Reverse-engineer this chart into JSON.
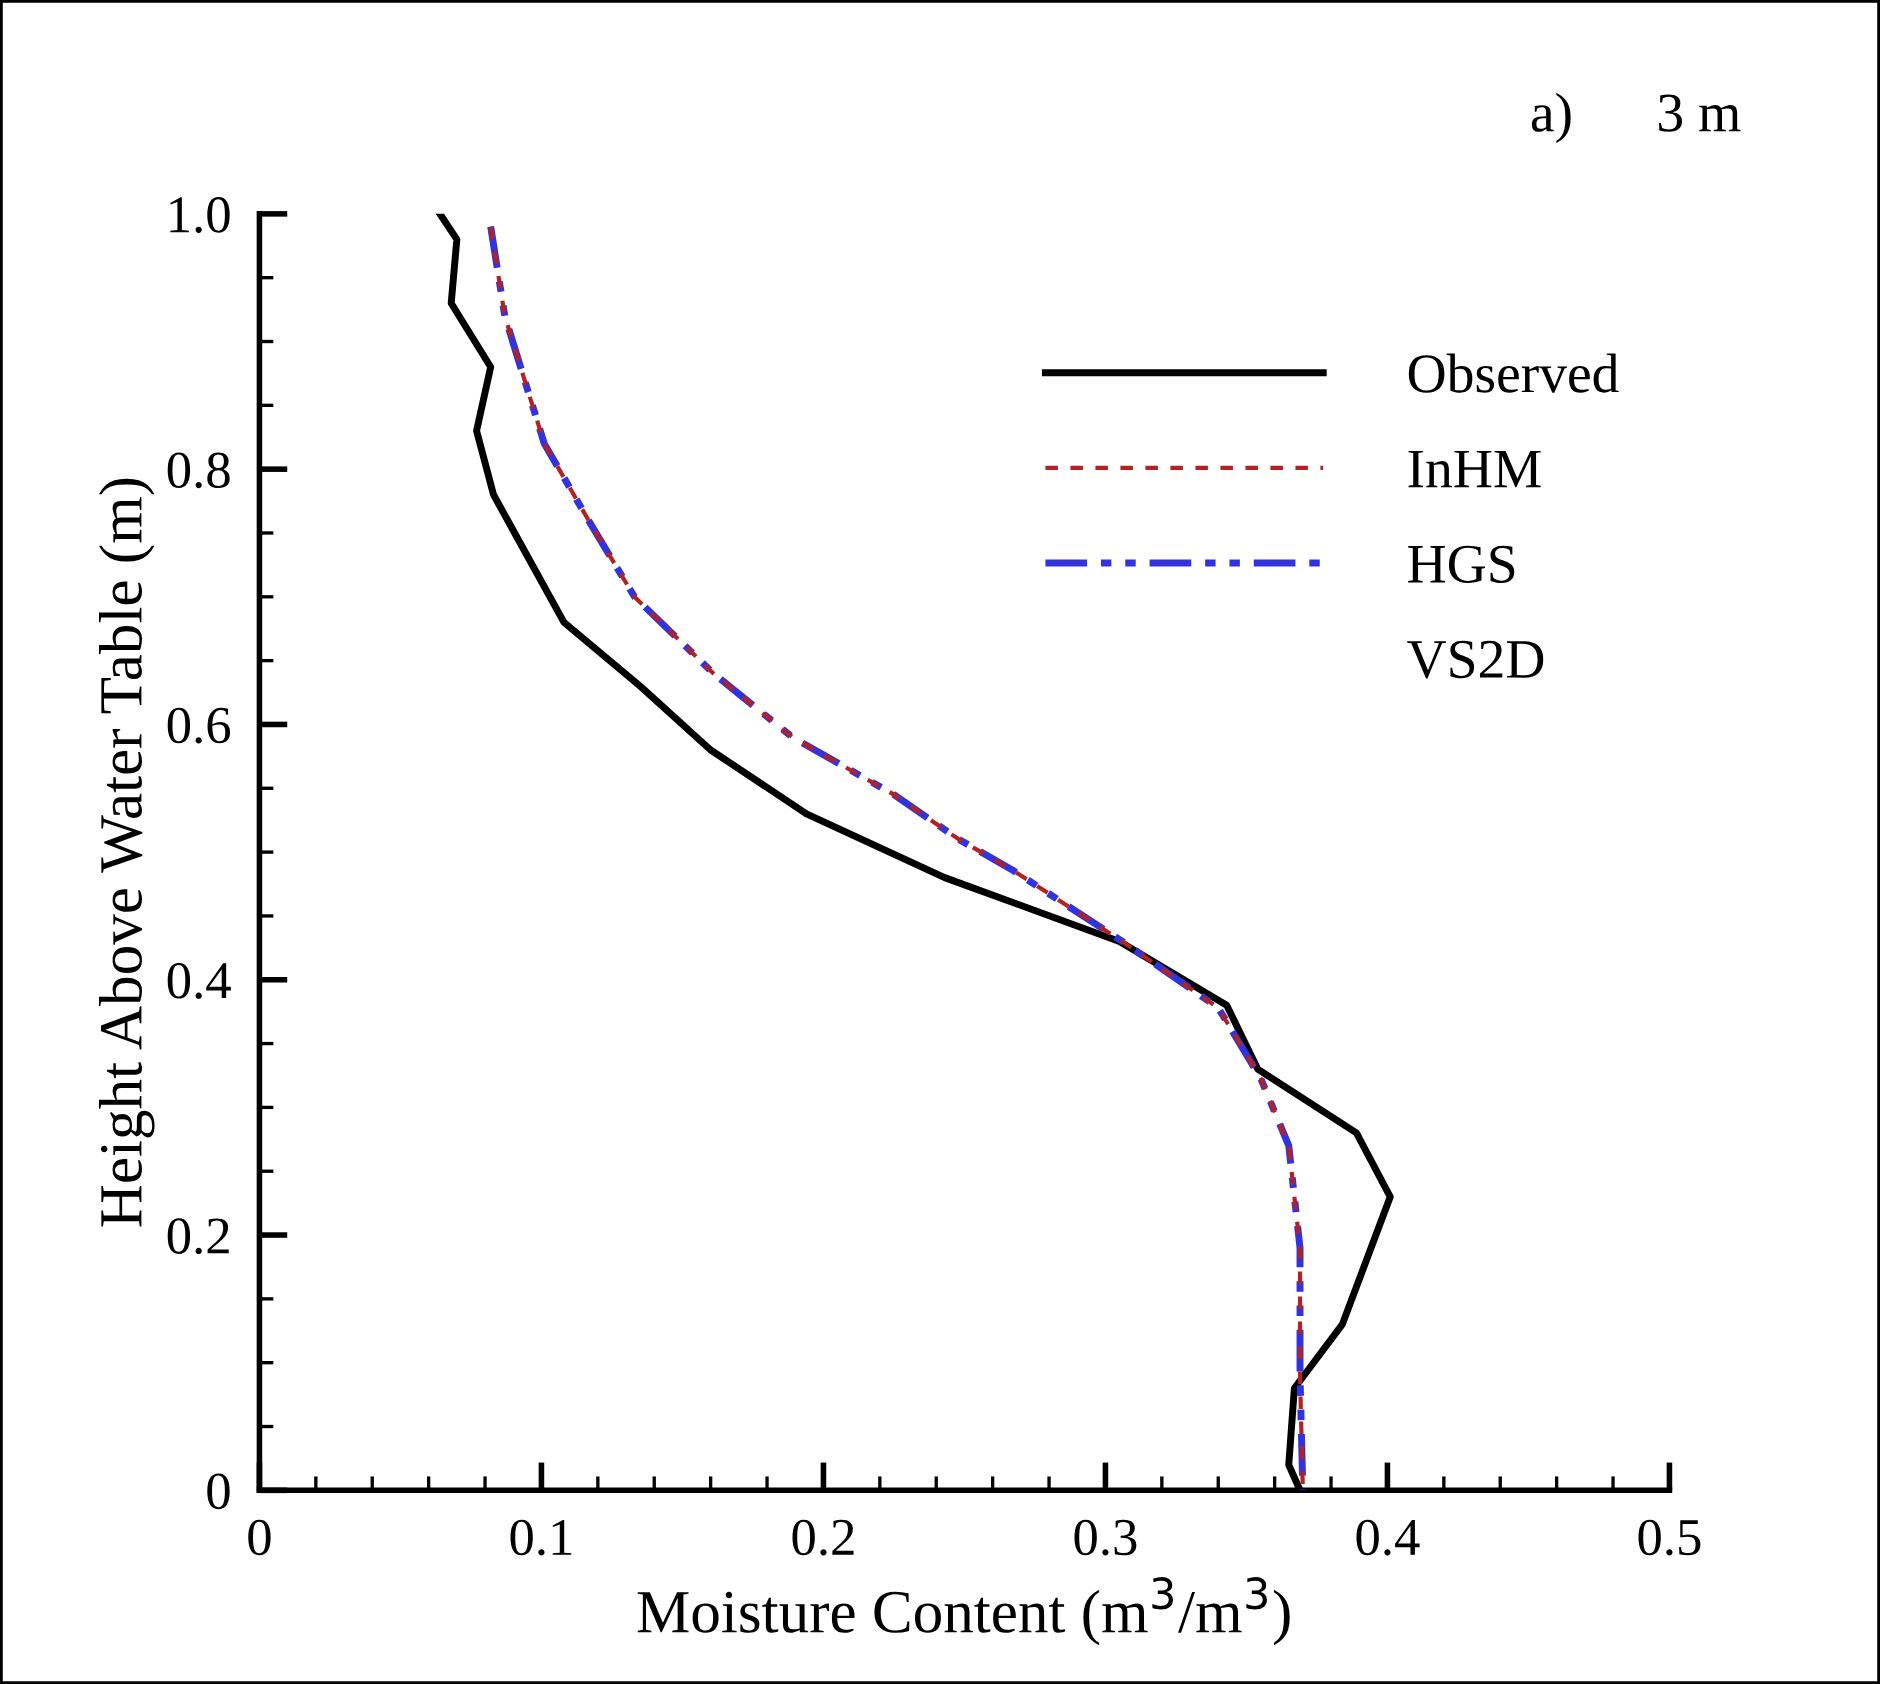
{
  "chart_data": {
    "type": "line",
    "xlabel": "Moisture Content (m$^{3}$/m$^{3}$)",
    "ylabel": "Height Above Water Table (m)",
    "annotations": [
      "a)      3 m"
    ],
    "xlim": [
      0,
      0.5
    ],
    "ylim": [
      0,
      1.0
    ],
    "xticks": [
      0,
      0.1,
      0.2,
      0.3,
      0.4,
      0.5
    ],
    "yticks": [
      0,
      0.2,
      0.4,
      0.6,
      0.8,
      {
        "value": 1.0,
        "label": "1.0"
      }
    ],
    "grid": false,
    "legend": "top right",
    "marker": "none",
    "series": [
      {
        "name": "Observed",
        "color": "#000000",
        "line_style": "solid",
        "x": [
          0.064,
          0.07,
          0.068,
          0.082,
          0.077,
          0.083,
          0.108,
          0.135,
          0.16,
          0.194,
          0.243,
          0.305,
          0.343,
          0.354,
          0.389,
          0.401,
          0.384,
          0.367,
          0.365,
          0.369
        ],
        "values": [
          1.0,
          0.98,
          0.93,
          0.88,
          0.83,
          0.78,
          0.68,
          0.63,
          0.58,
          0.53,
          0.48,
          0.43,
          0.38,
          0.33,
          0.28,
          0.23,
          0.13,
          0.08,
          0.02,
          0
        ]
      },
      {
        "name": "InHM",
        "color": "#b22222",
        "line_style": "dashed",
        "x": [
          0.082,
          0.087,
          0.101,
          0.118,
          0.133,
          0.161,
          0.189,
          0.225,
          0.248,
          0.267,
          0.306,
          0.34,
          0.355,
          0.365,
          0.369,
          0.369,
          0.37
        ],
        "values": [
          0.99,
          0.92,
          0.82,
          0.755,
          0.7,
          0.64,
          0.59,
          0.545,
          0.51,
          0.486,
          0.43,
          0.378,
          0.323,
          0.27,
          0.19,
          0.09,
          0
        ]
      },
      {
        "name": "HGS",
        "color": "#3333dd",
        "line_style": "dashdotdot",
        "x": [
          0.082,
          0.087,
          0.101,
          0.118,
          0.133,
          0.161,
          0.189,
          0.225,
          0.248,
          0.267,
          0.306,
          0.34,
          0.355,
          0.365,
          0.369,
          0.369,
          0.37
        ],
        "values": [
          0.99,
          0.92,
          0.82,
          0.755,
          0.7,
          0.64,
          0.59,
          0.545,
          0.51,
          0.486,
          0.43,
          0.378,
          0.323,
          0.27,
          0.19,
          0.09,
          0
        ]
      },
      {
        "name": "VS2D"
      }
    ]
  }
}
